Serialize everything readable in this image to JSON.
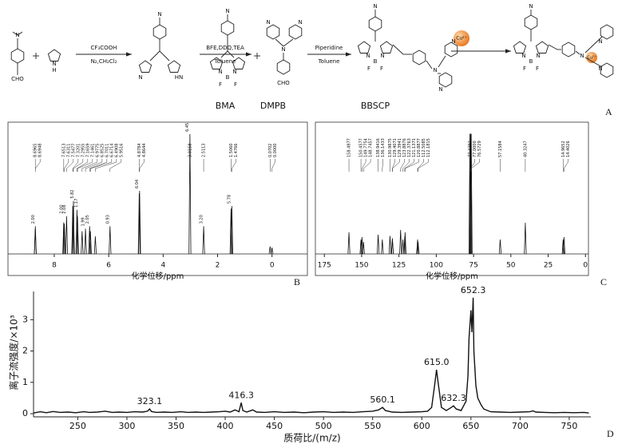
{
  "scheme": {
    "reagents": [
      "CF₃COOH",
      "N₂,CH₂Cl₂",
      "BFE,DDQ,TEA",
      "Toluene",
      "Piperidine",
      "Toluene"
    ],
    "compound_labels": [
      "BMA",
      "DMPB",
      "BBSCP"
    ],
    "ion": "Cu²⁺",
    "atoms": [
      "N",
      "CHO",
      "N",
      "H",
      "N",
      "N",
      "HN",
      "N",
      "N",
      "N",
      "B",
      "F",
      "F",
      "N",
      "N",
      "N",
      "CHO",
      "N",
      "N",
      "N",
      "B",
      "F",
      "F",
      "N",
      "N",
      "N",
      "N",
      "N",
      "N",
      "B",
      "F",
      "F",
      "N",
      "N",
      "N"
    ]
  },
  "panel_labels": [
    "A",
    "B",
    "C",
    "D"
  ],
  "chart_data": [
    {
      "type": "nmr",
      "xlabel": "化学位移/ppm",
      "xlim": [
        9.7,
        -1.3
      ],
      "xticks": [
        8,
        6,
        4,
        2,
        0
      ],
      "ylim": [
        0,
        100
      ],
      "peaks": {
        "x": [
          8.6965,
          8.6948,
          7.6513,
          7.6311,
          7.5477,
          7.3201,
          7.2955,
          7.1659,
          7.1461,
          6.9775,
          6.8525,
          6.7011,
          6.6714,
          6.4908,
          5.9516,
          4.8784,
          4.8644,
          3.0158,
          2.5113,
          1.506,
          1.4766,
          0.0702,
          0.0
        ],
        "values": [
          20,
          22,
          25,
          24,
          30,
          38,
          42,
          35,
          30,
          18,
          20,
          22,
          18,
          14,
          22,
          48,
          50,
          95,
          22,
          36,
          38,
          6,
          5
        ]
      },
      "shift_labels": [
        {
          "value": 8.6965,
          "label": "8.6965"
        },
        {
          "value": 8.6948,
          "label": "8.6948"
        },
        {
          "value": 7.6513,
          "label": "7.6513"
        },
        {
          "value": 7.6311,
          "label": "7.6311"
        },
        {
          "value": 7.5477,
          "label": "7.5477"
        },
        {
          "value": 7.3201,
          "label": "7.3201"
        },
        {
          "value": 7.2955,
          "label": "7.2955"
        },
        {
          "value": 7.1659,
          "label": "7.1659"
        },
        {
          "value": 7.1461,
          "label": "7.1461"
        },
        {
          "value": 6.9775,
          "label": "6.9775"
        },
        {
          "value": 6.8525,
          "label": "6.8525"
        },
        {
          "value": 6.7011,
          "label": "6.7011"
        },
        {
          "value": 6.6714,
          "label": "6.6714"
        },
        {
          "value": 6.4908,
          "label": "6.4908"
        },
        {
          "value": 5.9516,
          "label": "5.9516"
        },
        {
          "value": 4.8784,
          "label": "4.8784"
        },
        {
          "value": 4.8644,
          "label": "4.8644"
        },
        {
          "value": 3.0158,
          "label": "3.0158"
        },
        {
          "value": 2.5113,
          "label": "2.5113"
        },
        {
          "value": 1.506,
          "label": "1.5060"
        },
        {
          "value": 1.4766,
          "label": "1.4766"
        },
        {
          "value": 0.0702,
          "label": "0.0702"
        },
        {
          "value": 0.0,
          "label": "0.0000"
        }
      ],
      "integrals": {
        "x": [
          8.69,
          7.64,
          7.55,
          7.25,
          7.1,
          6.85,
          6.7,
          5.95,
          4.87,
          3.02,
          2.51,
          1.49
        ],
        "labels": [
          "2.00",
          "2.00",
          "2.08",
          "5.82",
          "1.17",
          "1.99",
          "2.05",
          "0.93",
          "6.04",
          "6.45",
          "3.20",
          "5.78"
        ]
      }
    },
    {
      "type": "nmr",
      "xlabel": "化学位移/ppm",
      "xlim": [
        181,
        -2
      ],
      "xticks": [
        175,
        150,
        125,
        100,
        75,
        50,
        25,
        0
      ],
      "ylim": [
        0,
        105
      ],
      "peaks": {
        "x": [
          158.4977,
          150.4577,
          149.7754,
          148.7457,
          138.9416,
          136.1433,
          130.9875,
          129.4071,
          129.3941,
          123.8876,
          122.3763,
          121.1371,
          120.8877,
          112.5085,
          112.1815,
          77.4292,
          77.0,
          76.5729,
          57.1584,
          40.3247,
          14.9652,
          14.4026
        ],
        "values": [
          18,
          12,
          14,
          10,
          16,
          12,
          15,
          13,
          12,
          20,
          12,
          14,
          18,
          12,
          10,
          100,
          100,
          100,
          12,
          26,
          12,
          14
        ]
      },
      "shift_labels": [
        {
          "value": 158.4977,
          "label": "158.4977"
        },
        {
          "value": 150.4577,
          "label": "150.4577"
        },
        {
          "value": 149.7754,
          "label": "149.7754"
        },
        {
          "value": 148.7457,
          "label": "148.7457"
        },
        {
          "value": 138.9416,
          "label": "138.9416"
        },
        {
          "value": 136.1433,
          "label": "136.1433"
        },
        {
          "value": 130.9875,
          "label": "130.9875"
        },
        {
          "value": 129.4071,
          "label": "129.4071"
        },
        {
          "value": 129.3941,
          "label": "129.3941"
        },
        {
          "value": 123.8876,
          "label": "123.8876"
        },
        {
          "value": 122.3763,
          "label": "122.3763"
        },
        {
          "value": 121.1371,
          "label": "121.1371"
        },
        {
          "value": 120.8877,
          "label": "120.8877"
        },
        {
          "value": 112.5085,
          "label": "112.5085"
        },
        {
          "value": 112.1815,
          "label": "112.1815"
        },
        {
          "value": 77.4292,
          "label": "77.4292"
        },
        {
          "value": 77.0,
          "label": "77.0000"
        },
        {
          "value": 76.5729,
          "label": "76.5729"
        },
        {
          "value": 57.1584,
          "label": "57.1584"
        },
        {
          "value": 40.3247,
          "label": "40.3247"
        },
        {
          "value": 14.9652,
          "label": "14.9652"
        },
        {
          "value": 14.4026,
          "label": "14.4026"
        }
      ]
    },
    {
      "type": "line",
      "xlabel": "质荷比/(m/z)",
      "ylabel": "离子流强度/×10³",
      "xlim": [
        205,
        772
      ],
      "ylim": [
        0,
        3.9
      ],
      "xticks": [
        250,
        300,
        350,
        400,
        450,
        500,
        550,
        600,
        650,
        700,
        750
      ],
      "yticks": [
        0,
        1,
        2,
        3
      ],
      "color": "#111111",
      "x": [
        205,
        212,
        218,
        225,
        232,
        240,
        248,
        256,
        262,
        270,
        278,
        285,
        292,
        300,
        308,
        316,
        321,
        323.1,
        325,
        330,
        338,
        346,
        355,
        362,
        370,
        378,
        386,
        394,
        400,
        405,
        410,
        414,
        416.3,
        418,
        422,
        428,
        432,
        440,
        450,
        460,
        470,
        480,
        490,
        500,
        510,
        520,
        530,
        540,
        550,
        556,
        560.1,
        563,
        570,
        580,
        590,
        600,
        606,
        610,
        613,
        615,
        617,
        620,
        625,
        630,
        632.3,
        635,
        640,
        645,
        647,
        648,
        650,
        651,
        652.3,
        653,
        655,
        657,
        660,
        663,
        670,
        680,
        690,
        700,
        710,
        713,
        716,
        725,
        735,
        745,
        755,
        765,
        770
      ],
      "values": [
        0.02,
        0.06,
        0.03,
        0.07,
        0.04,
        0.05,
        0.03,
        0.06,
        0.04,
        0.05,
        0.08,
        0.04,
        0.05,
        0.04,
        0.06,
        0.05,
        0.08,
        0.15,
        0.07,
        0.04,
        0.05,
        0.04,
        0.06,
        0.04,
        0.05,
        0.04,
        0.05,
        0.06,
        0.08,
        0.05,
        0.12,
        0.06,
        0.35,
        0.1,
        0.05,
        0.12,
        0.05,
        0.04,
        0.06,
        0.04,
        0.05,
        0.03,
        0.05,
        0.06,
        0.04,
        0.05,
        0.04,
        0.06,
        0.08,
        0.12,
        0.2,
        0.1,
        0.05,
        0.04,
        0.05,
        0.06,
        0.08,
        0.2,
        0.9,
        1.4,
        0.9,
        0.2,
        0.1,
        0.2,
        0.25,
        0.15,
        0.1,
        0.4,
        1.2,
        2.4,
        3.3,
        2.6,
        3.7,
        2.0,
        0.9,
        0.5,
        0.3,
        0.15,
        0.06,
        0.05,
        0.04,
        0.05,
        0.06,
        0.09,
        0.05,
        0.04,
        0.03,
        0.04,
        0.03,
        0.04,
        0.02
      ],
      "peak_labels": {
        "x": [
          323.1,
          416.3,
          560.1,
          615.0,
          632.3,
          652.3
        ],
        "values": [
          0.15,
          0.35,
          0.2,
          1.4,
          0.25,
          3.7
        ],
        "labels": [
          "323.1",
          "416.3",
          "560.1",
          "615.0",
          "632.3",
          "652.3"
        ]
      }
    }
  ]
}
